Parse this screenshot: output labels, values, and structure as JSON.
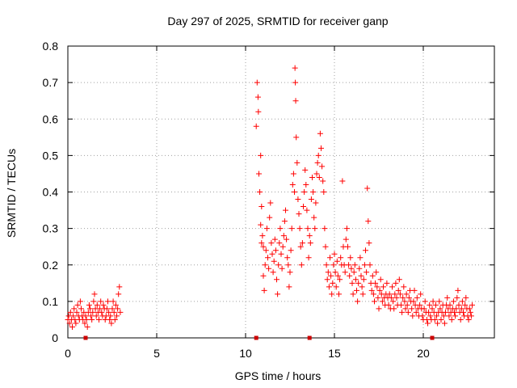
{
  "chart_data": {
    "type": "scatter",
    "title": "Day 297 of 2025, SRMTID for receiver ganp",
    "xlabel": "GPS time / hours",
    "ylabel": "SRMTID / TECUs",
    "xlim": [
      0,
      24
    ],
    "ylim": [
      0,
      0.8
    ],
    "x_ticks": [
      0,
      5,
      10,
      15,
      20
    ],
    "x_tick_labels": [
      "0",
      "5",
      "10",
      "15",
      "20"
    ],
    "y_ticks": [
      0,
      0.1,
      0.2,
      0.3,
      0.4,
      0.5,
      0.6,
      0.7,
      0.8
    ],
    "y_tick_labels": [
      "0",
      "0.1",
      "0.2",
      "0.3",
      "0.4",
      "0.5",
      "0.6",
      "0.7",
      "0.8"
    ],
    "grid": true,
    "marker": "plus",
    "color": "#ff0000",
    "series": [
      {
        "name": "SRMTID",
        "points": [
          [
            0.0,
            0.05
          ],
          [
            0.05,
            0.06
          ],
          [
            0.1,
            0.04
          ],
          [
            0.15,
            0.07
          ],
          [
            0.2,
            0.05
          ],
          [
            0.25,
            0.03
          ],
          [
            0.3,
            0.06
          ],
          [
            0.35,
            0.08
          ],
          [
            0.4,
            0.05
          ],
          [
            0.45,
            0.04
          ],
          [
            0.5,
            0.07
          ],
          [
            0.55,
            0.09
          ],
          [
            0.6,
            0.06
          ],
          [
            0.65,
            0.05
          ],
          [
            0.7,
            0.1
          ],
          [
            0.75,
            0.08
          ],
          [
            0.8,
            0.06
          ],
          [
            0.85,
            0.05
          ],
          [
            0.9,
            0.07
          ],
          [
            0.95,
            0.04
          ],
          [
            1.0,
            0.06
          ],
          [
            1.05,
            0.05
          ],
          [
            1.1,
            0.03
          ],
          [
            1.15,
            0.07
          ],
          [
            1.2,
            0.09
          ],
          [
            1.25,
            0.08
          ],
          [
            1.3,
            0.06
          ],
          [
            1.35,
            0.05
          ],
          [
            1.4,
            0.07
          ],
          [
            1.45,
            0.1
          ],
          [
            1.5,
            0.12
          ],
          [
            1.55,
            0.08
          ],
          [
            1.6,
            0.06
          ],
          [
            1.65,
            0.09
          ],
          [
            1.7,
            0.07
          ],
          [
            1.75,
            0.05
          ],
          [
            1.8,
            0.08
          ],
          [
            1.85,
            0.1
          ],
          [
            1.9,
            0.07
          ],
          [
            1.95,
            0.06
          ],
          [
            2.0,
            0.09
          ],
          [
            2.05,
            0.08
          ],
          [
            2.1,
            0.05
          ],
          [
            2.15,
            0.06
          ],
          [
            2.2,
            0.08
          ],
          [
            2.25,
            0.1
          ],
          [
            2.3,
            0.07
          ],
          [
            2.35,
            0.05
          ],
          [
            2.4,
            0.06
          ],
          [
            2.45,
            0.04
          ],
          [
            2.5,
            0.08
          ],
          [
            2.55,
            0.1
          ],
          [
            2.6,
            0.07
          ],
          [
            2.65,
            0.05
          ],
          [
            2.7,
            0.09
          ],
          [
            2.75,
            0.06
          ],
          [
            2.8,
            0.08
          ],
          [
            2.85,
            0.12
          ],
          [
            2.9,
            0.14
          ],
          [
            2.95,
            0.07
          ],
          [
            10.6,
            0.58
          ],
          [
            10.65,
            0.7
          ],
          [
            10.7,
            0.66
          ],
          [
            10.72,
            0.62
          ],
          [
            10.75,
            0.45
          ],
          [
            10.8,
            0.4
          ],
          [
            10.85,
            0.5
          ],
          [
            10.9,
            0.36
          ],
          [
            10.95,
            0.28
          ],
          [
            11.0,
            0.25
          ],
          [
            10.85,
            0.31
          ],
          [
            10.9,
            0.26
          ],
          [
            11.0,
            0.17
          ],
          [
            11.05,
            0.13
          ],
          [
            11.1,
            0.2
          ],
          [
            11.15,
            0.24
          ],
          [
            11.2,
            0.3
          ],
          [
            11.25,
            0.22
          ],
          [
            11.3,
            0.19
          ],
          [
            11.35,
            0.33
          ],
          [
            11.4,
            0.37
          ],
          [
            11.45,
            0.26
          ],
          [
            11.5,
            0.23
          ],
          [
            11.55,
            0.18
          ],
          [
            11.6,
            0.21
          ],
          [
            11.65,
            0.27
          ],
          [
            11.7,
            0.24
          ],
          [
            11.75,
            0.16
          ],
          [
            11.8,
            0.12
          ],
          [
            11.85,
            0.2
          ],
          [
            11.9,
            0.26
          ],
          [
            11.95,
            0.3
          ],
          [
            12.0,
            0.23
          ],
          [
            12.05,
            0.19
          ],
          [
            12.1,
            0.25
          ],
          [
            12.15,
            0.28
          ],
          [
            12.2,
            0.32
          ],
          [
            12.25,
            0.35
          ],
          [
            12.3,
            0.27
          ],
          [
            12.35,
            0.22
          ],
          [
            12.4,
            0.2
          ],
          [
            12.45,
            0.14
          ],
          [
            12.5,
            0.18
          ],
          [
            12.55,
            0.24
          ],
          [
            12.6,
            0.3
          ],
          [
            12.65,
            0.42
          ],
          [
            12.7,
            0.45
          ],
          [
            12.75,
            0.4
          ],
          [
            12.78,
            0.74
          ],
          [
            12.8,
            0.7
          ],
          [
            12.82,
            0.65
          ],
          [
            12.85,
            0.55
          ],
          [
            12.9,
            0.48
          ],
          [
            12.95,
            0.38
          ],
          [
            13.0,
            0.34
          ],
          [
            13.05,
            0.3
          ],
          [
            13.1,
            0.25
          ],
          [
            13.15,
            0.2
          ],
          [
            13.2,
            0.26
          ],
          [
            13.25,
            0.36
          ],
          [
            13.3,
            0.4
          ],
          [
            13.35,
            0.46
          ],
          [
            13.4,
            0.42
          ],
          [
            13.45,
            0.35
          ],
          [
            13.5,
            0.3
          ],
          [
            13.55,
            0.22
          ],
          [
            13.6,
            0.28
          ],
          [
            13.65,
            0.26
          ],
          [
            13.7,
            0.38
          ],
          [
            13.75,
            0.44
          ],
          [
            13.8,
            0.4
          ],
          [
            13.85,
            0.33
          ],
          [
            13.9,
            0.3
          ],
          [
            13.95,
            0.37
          ],
          [
            14.0,
            0.45
          ],
          [
            14.05,
            0.48
          ],
          [
            14.1,
            0.5
          ],
          [
            14.15,
            0.44
          ],
          [
            14.2,
            0.56
          ],
          [
            14.25,
            0.52
          ],
          [
            14.3,
            0.47
          ],
          [
            14.35,
            0.43
          ],
          [
            14.4,
            0.4
          ],
          [
            14.45,
            0.3
          ],
          [
            14.5,
            0.25
          ],
          [
            14.55,
            0.2
          ],
          [
            14.6,
            0.16
          ],
          [
            14.65,
            0.18
          ],
          [
            14.7,
            0.14
          ],
          [
            14.75,
            0.22
          ],
          [
            14.8,
            0.17
          ],
          [
            14.85,
            0.12
          ],
          [
            14.9,
            0.15
          ],
          [
            14.95,
            0.2
          ],
          [
            15.0,
            0.23
          ],
          [
            15.05,
            0.18
          ],
          [
            15.1,
            0.14
          ],
          [
            15.15,
            0.21
          ],
          [
            15.2,
            0.17
          ],
          [
            15.25,
            0.12
          ],
          [
            15.3,
            0.16
          ],
          [
            15.35,
            0.22
          ],
          [
            15.4,
            0.2
          ],
          [
            15.45,
            0.43
          ],
          [
            15.5,
            0.25
          ],
          [
            15.55,
            0.2
          ],
          [
            15.6,
            0.18
          ],
          [
            15.65,
            0.27
          ],
          [
            15.7,
            0.3
          ],
          [
            15.75,
            0.25
          ],
          [
            15.8,
            0.2
          ],
          [
            15.85,
            0.17
          ],
          [
            15.9,
            0.22
          ],
          [
            15.95,
            0.19
          ],
          [
            16.0,
            0.15
          ],
          [
            16.05,
            0.12
          ],
          [
            16.1,
            0.18
          ],
          [
            16.15,
            0.2
          ],
          [
            16.2,
            0.16
          ],
          [
            16.25,
            0.13
          ],
          [
            16.3,
            0.1
          ],
          [
            16.35,
            0.15
          ],
          [
            16.4,
            0.19
          ],
          [
            16.45,
            0.22
          ],
          [
            16.5,
            0.17
          ],
          [
            16.55,
            0.14
          ],
          [
            16.6,
            0.12
          ],
          [
            16.65,
            0.16
          ],
          [
            16.7,
            0.2
          ],
          [
            16.75,
            0.24
          ],
          [
            16.8,
            0.18
          ],
          [
            16.85,
            0.41
          ],
          [
            16.9,
            0.32
          ],
          [
            16.95,
            0.26
          ],
          [
            17.0,
            0.2
          ],
          [
            17.05,
            0.15
          ],
          [
            17.1,
            0.13
          ],
          [
            17.15,
            0.17
          ],
          [
            17.2,
            0.12
          ],
          [
            17.25,
            0.1
          ],
          [
            17.3,
            0.15
          ],
          [
            17.35,
            0.18
          ],
          [
            17.4,
            0.14
          ],
          [
            17.45,
            0.11
          ],
          [
            17.5,
            0.08
          ],
          [
            17.55,
            0.13
          ],
          [
            17.6,
            0.16
          ],
          [
            17.65,
            0.12
          ],
          [
            17.7,
            0.1
          ],
          [
            17.75,
            0.14
          ],
          [
            17.8,
            0.11
          ],
          [
            17.85,
            0.09
          ],
          [
            17.9,
            0.12
          ],
          [
            17.95,
            0.15
          ],
          [
            18.0,
            0.11
          ],
          [
            18.05,
            0.09
          ],
          [
            18.1,
            0.12
          ],
          [
            18.15,
            0.08
          ],
          [
            18.2,
            0.11
          ],
          [
            18.25,
            0.14
          ],
          [
            18.3,
            0.1
          ],
          [
            18.35,
            0.08
          ],
          [
            18.4,
            0.12
          ],
          [
            18.45,
            0.15
          ],
          [
            18.5,
            0.11
          ],
          [
            18.55,
            0.09
          ],
          [
            18.6,
            0.13
          ],
          [
            18.65,
            0.16
          ],
          [
            18.7,
            0.12
          ],
          [
            18.75,
            0.09
          ],
          [
            18.8,
            0.07
          ],
          [
            18.85,
            0.11
          ],
          [
            18.9,
            0.14
          ],
          [
            18.95,
            0.1
          ],
          [
            19.0,
            0.08
          ],
          [
            19.05,
            0.12
          ],
          [
            19.1,
            0.09
          ],
          [
            19.15,
            0.07
          ],
          [
            19.2,
            0.11
          ],
          [
            19.25,
            0.13
          ],
          [
            19.3,
            0.1
          ],
          [
            19.35,
            0.08
          ],
          [
            19.4,
            0.06
          ],
          [
            19.45,
            0.1
          ],
          [
            19.5,
            0.13
          ],
          [
            19.55,
            0.09
          ],
          [
            19.6,
            0.07
          ],
          [
            19.65,
            0.11
          ],
          [
            19.7,
            0.08
          ],
          [
            19.75,
            0.06
          ],
          [
            19.8,
            0.09
          ],
          [
            19.85,
            0.12
          ],
          [
            19.9,
            0.08
          ],
          [
            19.95,
            0.06
          ],
          [
            20.0,
            0.05
          ],
          [
            20.05,
            0.08
          ],
          [
            20.1,
            0.1
          ],
          [
            20.15,
            0.07
          ],
          [
            20.2,
            0.05
          ],
          [
            20.25,
            0.04
          ],
          [
            20.3,
            0.07
          ],
          [
            20.35,
            0.09
          ],
          [
            20.4,
            0.06
          ],
          [
            20.45,
            0.05
          ],
          [
            20.5,
            0.08
          ],
          [
            20.55,
            0.1
          ],
          [
            20.6,
            0.07
          ],
          [
            20.65,
            0.05
          ],
          [
            20.7,
            0.09
          ],
          [
            20.75,
            0.06
          ],
          [
            20.8,
            0.04
          ],
          [
            20.85,
            0.07
          ],
          [
            20.9,
            0.1
          ],
          [
            20.95,
            0.08
          ],
          [
            21.0,
            0.05
          ],
          [
            21.05,
            0.07
          ],
          [
            21.1,
            0.09
          ],
          [
            21.15,
            0.06
          ],
          [
            21.2,
            0.04
          ],
          [
            21.25,
            0.07
          ],
          [
            21.3,
            0.09
          ],
          [
            21.35,
            0.11
          ],
          [
            21.4,
            0.08
          ],
          [
            21.45,
            0.06
          ],
          [
            21.5,
            0.09
          ],
          [
            21.55,
            0.07
          ],
          [
            21.6,
            0.05
          ],
          [
            21.65,
            0.08
          ],
          [
            21.7,
            0.1
          ],
          [
            21.75,
            0.07
          ],
          [
            21.8,
            0.06
          ],
          [
            21.85,
            0.08
          ],
          [
            21.9,
            0.11
          ],
          [
            21.95,
            0.13
          ],
          [
            22.0,
            0.09
          ],
          [
            22.05,
            0.07
          ],
          [
            22.1,
            0.05
          ],
          [
            22.15,
            0.08
          ],
          [
            22.2,
            0.1
          ],
          [
            22.25,
            0.07
          ],
          [
            22.3,
            0.06
          ],
          [
            22.35,
            0.09
          ],
          [
            22.4,
            0.11
          ],
          [
            22.45,
            0.08
          ],
          [
            22.5,
            0.06
          ],
          [
            22.55,
            0.05
          ],
          [
            22.6,
            0.08
          ],
          [
            22.65,
            0.07
          ],
          [
            22.7,
            0.06
          ],
          [
            22.75,
            0.09
          ]
        ]
      }
    ],
    "x_markers": [
      1.0,
      10.6,
      13.6,
      20.5
    ]
  }
}
